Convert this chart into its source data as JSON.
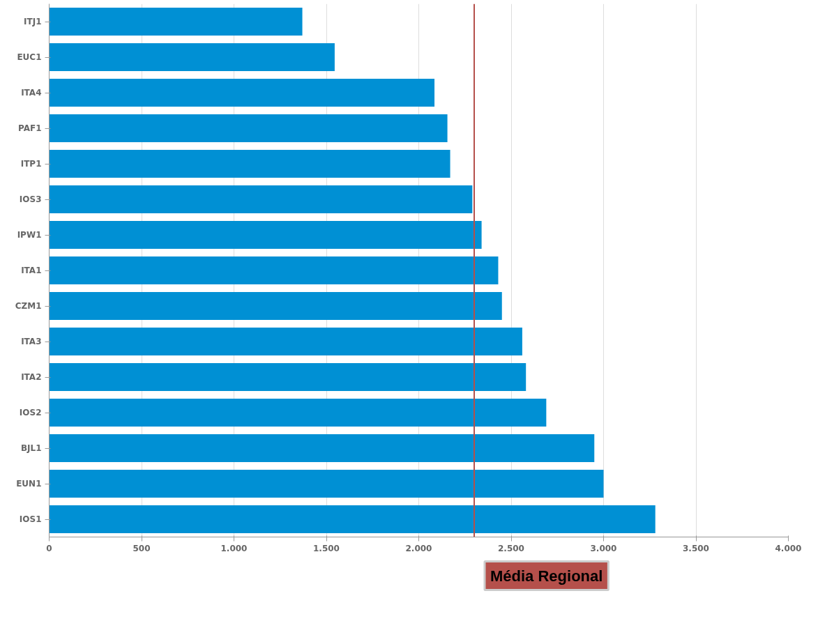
{
  "chart_data": {
    "type": "bar",
    "orientation": "horizontal",
    "categories": [
      "ITJ1",
      "EUC1",
      "ITA4",
      "PAF1",
      "ITP1",
      "IOS3",
      "IPW1",
      "ITA1",
      "CZM1",
      "ITA3",
      "ITA2",
      "IOS2",
      "BJL1",
      "EUN1",
      "IOS1"
    ],
    "values": [
      1370,
      1545,
      2085,
      2155,
      2170,
      2290,
      2340,
      2430,
      2450,
      2560,
      2580,
      2690,
      2950,
      3000,
      3280
    ],
    "color": "#0090d4",
    "xlim": [
      0,
      4000
    ],
    "xticks": [
      0,
      500,
      {
        "value": 1000,
        "label": "1.000"
      },
      {
        "value": 1500,
        "label": "1.500"
      },
      {
        "value": 2000,
        "label": "2.000"
      },
      {
        "value": 2500,
        "label": "2.500"
      },
      {
        "value": 3000,
        "label": "3.000"
      },
      {
        "value": 3500,
        "label": "3.500"
      },
      {
        "value": 4000,
        "label": "4.000"
      }
    ],
    "grid": "x",
    "ref_lines": [
      {
        "axis": "x",
        "value": 2300,
        "label": "Média Regional",
        "color": "#b5504b"
      }
    ]
  }
}
